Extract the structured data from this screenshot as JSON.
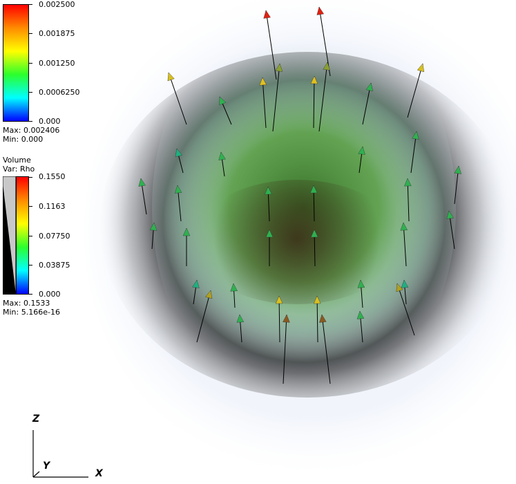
{
  "velocity_legend": {
    "ticks": [
      "0.002500",
      "0.001875",
      "0.001250",
      "0.0006250",
      "0.000"
    ],
    "max_label": "Max:  0.002406",
    "min_label": "Min:  0.000",
    "gradient_colors": [
      "#ff0000",
      "#ff8c00",
      "#ffff00",
      "#2cff2c",
      "#00ffff",
      "#0000ff"
    ]
  },
  "volume_legend": {
    "title": "Volume",
    "var_label": "Var: Rho",
    "ticks": [
      "0.1550",
      "0.1163",
      "0.07750",
      "0.03875",
      "0.000"
    ],
    "max_label": "Max:  0.1533",
    "min_label": "Min:  5.166e-16",
    "gradient_colors": [
      "#ff0000",
      "#ff8c00",
      "#ffff00",
      "#2cff2c",
      "#00ffff",
      "#0000ff"
    ]
  },
  "axes": {
    "z_label": "Z",
    "y_label": "Y",
    "x_label": "X"
  }
}
